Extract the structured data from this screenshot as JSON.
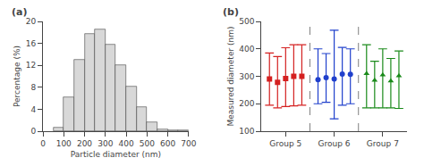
{
  "chart_data": [
    {
      "type": "histogram",
      "title": "(a)",
      "bins": [
        50,
        100,
        150,
        200,
        250,
        300,
        350,
        400,
        450,
        500,
        550,
        600,
        650,
        700
      ],
      "values": [
        0.6,
        6.2,
        13.0,
        17.8,
        18.5,
        15.8,
        12.1,
        8.1,
        4.4,
        1.7,
        0.4,
        0.2,
        0.1
      ],
      "color": "#d8d8d8",
      "xlabel": "Particle diameter (nm)",
      "ylabel": "Percentage (%)",
      "xlim": [
        0,
        700
      ],
      "ylim": [
        0,
        20
      ],
      "xticks": [
        0,
        100,
        200,
        300,
        400,
        500,
        600,
        700
      ],
      "yticks": [
        0,
        4,
        8,
        12,
        16,
        20
      ],
      "grid": false
    },
    {
      "type": "scatter",
      "title": "(b)",
      "ylabel": "Measured diameter (nm)",
      "xlim": [
        0,
        18
      ],
      "xticks": [
        {
          "value": 3,
          "label": "Group 5"
        },
        {
          "value": 9,
          "label": "Group 6"
        },
        {
          "value": 15,
          "label": "Group 7"
        }
      ],
      "ylim": [
        100,
        500
      ],
      "yticks": [
        100,
        200,
        300,
        400,
        500
      ],
      "vlines": [
        6,
        12
      ],
      "grid": false,
      "series": [
        {
          "color": "#d42020",
          "marker": "square",
          "x": [
            1,
            2,
            3,
            4,
            5
          ],
          "values": [
            290,
            278,
            292,
            300,
            300
          ],
          "low": [
            195,
            185,
            190,
            192,
            195
          ],
          "high": [
            385,
            372,
            404,
            415,
            415
          ]
        },
        {
          "color": "#2040cc",
          "marker": "circle",
          "x": [
            7,
            8,
            9,
            10,
            11
          ],
          "values": [
            288,
            295,
            290,
            308,
            307
          ],
          "low": [
            200,
            205,
            145,
            195,
            200
          ],
          "high": [
            400,
            383,
            468,
            405,
            400
          ]
        },
        {
          "color": "#1a8a1a",
          "marker": "triangle",
          "x": [
            13,
            14,
            15,
            16,
            17
          ],
          "values": [
            310,
            285,
            305,
            283,
            302
          ],
          "low": [
            185,
            185,
            185,
            185,
            183
          ],
          "high": [
            415,
            355,
            400,
            365,
            392
          ]
        }
      ]
    }
  ]
}
